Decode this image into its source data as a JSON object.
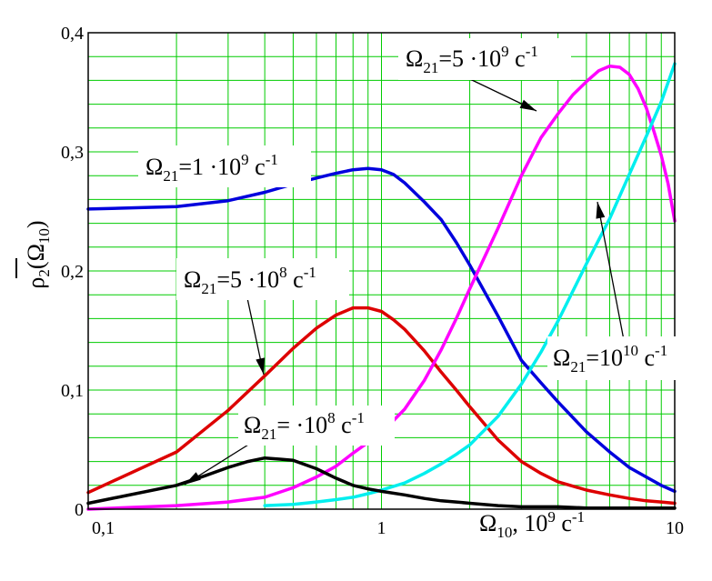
{
  "chart_data": {
    "type": "line",
    "xscale": "log",
    "xlim": [
      0.1,
      10
    ],
    "ylim": [
      0,
      0.4
    ],
    "grid": true,
    "grid_color": "#00cc00",
    "x_ticks": [
      {
        "value": 0.1,
        "label": "0,1"
      },
      {
        "value": 1,
        "label": "1"
      },
      {
        "value": 10,
        "label": "10"
      }
    ],
    "y_ticks": [
      {
        "value": 0,
        "label": "0"
      },
      {
        "value": 0.1,
        "label": "0,1"
      },
      {
        "value": 0.2,
        "label": "0,2"
      },
      {
        "value": 0.3,
        "label": "0,3"
      },
      {
        "value": 0.4,
        "label": "0,4"
      }
    ],
    "xlabel": {
      "main": "Ω",
      "sub": "10",
      "rest": ", 10",
      "sup": "9",
      "unit": " c",
      "unit_sup": "-1"
    },
    "ylabel": {
      "main": "ρ",
      "sub": "2",
      "open": "(Ω",
      "sub2": "10",
      "close": ")"
    },
    "series": [
      {
        "color": "#0000dd",
        "points": [
          [
            0.1,
            0.252
          ],
          [
            0.2,
            0.254
          ],
          [
            0.3,
            0.259
          ],
          [
            0.4,
            0.266
          ],
          [
            0.5,
            0.273
          ],
          [
            0.6,
            0.278
          ],
          [
            0.7,
            0.282
          ],
          [
            0.8,
            0.285
          ],
          [
            0.9,
            0.286
          ],
          [
            1.0,
            0.285
          ],
          [
            1.1,
            0.281
          ],
          [
            1.2,
            0.274
          ],
          [
            1.4,
            0.258
          ],
          [
            1.6,
            0.243
          ],
          [
            1.8,
            0.224
          ],
          [
            2.0,
            0.205
          ],
          [
            2.5,
            0.162
          ],
          [
            3.0,
            0.125
          ],
          [
            3.5,
            0.106
          ],
          [
            4.0,
            0.09
          ],
          [
            5.0,
            0.065
          ],
          [
            6.0,
            0.048
          ],
          [
            7.0,
            0.035
          ],
          [
            8.0,
            0.027
          ],
          [
            9.0,
            0.02
          ],
          [
            10.0,
            0.015
          ]
        ]
      },
      {
        "color": "#dd0000",
        "points": [
          [
            0.1,
            0.014
          ],
          [
            0.2,
            0.048
          ],
          [
            0.3,
            0.083
          ],
          [
            0.4,
            0.112
          ],
          [
            0.5,
            0.135
          ],
          [
            0.6,
            0.152
          ],
          [
            0.7,
            0.163
          ],
          [
            0.8,
            0.169
          ],
          [
            0.9,
            0.169
          ],
          [
            1.0,
            0.166
          ],
          [
            1.1,
            0.159
          ],
          [
            1.2,
            0.151
          ],
          [
            1.4,
            0.133
          ],
          [
            1.6,
            0.115
          ],
          [
            1.8,
            0.1
          ],
          [
            2.0,
            0.086
          ],
          [
            2.5,
            0.058
          ],
          [
            3.0,
            0.04
          ],
          [
            3.5,
            0.03
          ],
          [
            4.0,
            0.023
          ],
          [
            5.0,
            0.016
          ],
          [
            6.0,
            0.012
          ],
          [
            7.0,
            0.009
          ],
          [
            8.0,
            0.007
          ],
          [
            9.0,
            0.006
          ],
          [
            10.0,
            0.005
          ]
        ]
      },
      {
        "color": "#ff00ff",
        "points": [
          [
            0.1,
            0.0
          ],
          [
            0.2,
            0.003
          ],
          [
            0.3,
            0.006
          ],
          [
            0.4,
            0.01
          ],
          [
            0.5,
            0.018
          ],
          [
            0.6,
            0.027
          ],
          [
            0.7,
            0.036
          ],
          [
            0.8,
            0.047
          ],
          [
            0.9,
            0.056
          ],
          [
            1.0,
            0.064
          ],
          [
            1.2,
            0.084
          ],
          [
            1.4,
            0.108
          ],
          [
            1.6,
            0.134
          ],
          [
            1.8,
            0.16
          ],
          [
            2.0,
            0.185
          ],
          [
            2.5,
            0.236
          ],
          [
            3.0,
            0.28
          ],
          [
            3.5,
            0.312
          ],
          [
            4.0,
            0.332
          ],
          [
            4.5,
            0.348
          ],
          [
            5.0,
            0.359
          ],
          [
            5.5,
            0.368
          ],
          [
            6.0,
            0.372
          ],
          [
            6.5,
            0.371
          ],
          [
            7.0,
            0.365
          ],
          [
            7.5,
            0.353
          ],
          [
            8.0,
            0.337
          ],
          [
            8.5,
            0.317
          ],
          [
            9.0,
            0.297
          ],
          [
            9.5,
            0.273
          ],
          [
            10.0,
            0.242
          ]
        ]
      },
      {
        "color": "#00eeee",
        "points": [
          [
            0.4,
            0.003
          ],
          [
            0.5,
            0.004
          ],
          [
            0.6,
            0.006
          ],
          [
            0.7,
            0.008
          ],
          [
            0.8,
            0.01
          ],
          [
            0.9,
            0.013
          ],
          [
            1.0,
            0.016
          ],
          [
            1.2,
            0.022
          ],
          [
            1.4,
            0.03
          ],
          [
            1.6,
            0.038
          ],
          [
            1.8,
            0.046
          ],
          [
            2.0,
            0.054
          ],
          [
            2.5,
            0.078
          ],
          [
            3.0,
            0.105
          ],
          [
            3.5,
            0.132
          ],
          [
            4.0,
            0.158
          ],
          [
            5.0,
            0.206
          ],
          [
            6.0,
            0.244
          ],
          [
            7.0,
            0.281
          ],
          [
            8.0,
            0.313
          ],
          [
            9.0,
            0.342
          ],
          [
            10.0,
            0.374
          ]
        ]
      },
      {
        "color": "#000000",
        "points": [
          [
            0.1,
            0.005
          ],
          [
            0.2,
            0.02
          ],
          [
            0.25,
            0.028
          ],
          [
            0.3,
            0.035
          ],
          [
            0.35,
            0.04
          ],
          [
            0.4,
            0.043
          ],
          [
            0.45,
            0.042
          ],
          [
            0.5,
            0.041
          ],
          [
            0.6,
            0.034
          ],
          [
            0.7,
            0.026
          ],
          [
            0.8,
            0.02
          ],
          [
            0.9,
            0.017
          ],
          [
            1.0,
            0.015
          ],
          [
            1.2,
            0.012
          ],
          [
            1.4,
            0.009
          ],
          [
            1.6,
            0.007
          ],
          [
            1.8,
            0.006
          ],
          [
            2.0,
            0.005
          ],
          [
            2.5,
            0.003
          ],
          [
            3.0,
            0.002
          ],
          [
            4.0,
            0.002
          ],
          [
            5.0,
            0.001
          ],
          [
            7.0,
            0.001
          ],
          [
            10.0,
            0.001
          ]
        ]
      }
    ],
    "annotations": [
      {
        "omega": "Ω",
        "sub": "21",
        "coef": "=1 ",
        "dot": "·",
        "base": "10",
        "sup": "9",
        "unit": " c",
        "unit_sup": "-1",
        "series_index": 0
      },
      {
        "omega": "Ω",
        "sub": "21",
        "coef": "=5 ",
        "dot": "·",
        "base": "10",
        "sup": "8",
        "unit": " c",
        "unit_sup": "-1",
        "series_index": 1
      },
      {
        "omega": "Ω",
        "sub": "21",
        "coef": "=5 ",
        "dot": "·",
        "base": "10",
        "sup": "9",
        "unit": " c",
        "unit_sup": "-1",
        "series_index": 2
      },
      {
        "omega": "Ω",
        "sub": "21",
        "coef": "=",
        "dot": "",
        "base": "10",
        "sup": "10",
        "unit": " c",
        "unit_sup": "-1",
        "series_index": 3
      },
      {
        "omega": "Ω",
        "sub": "21",
        "coef": "= ",
        "dot": "·",
        "base": "10",
        "sup": "8",
        "unit": " c",
        "unit_sup": "-1",
        "series_index": 4
      }
    ]
  }
}
